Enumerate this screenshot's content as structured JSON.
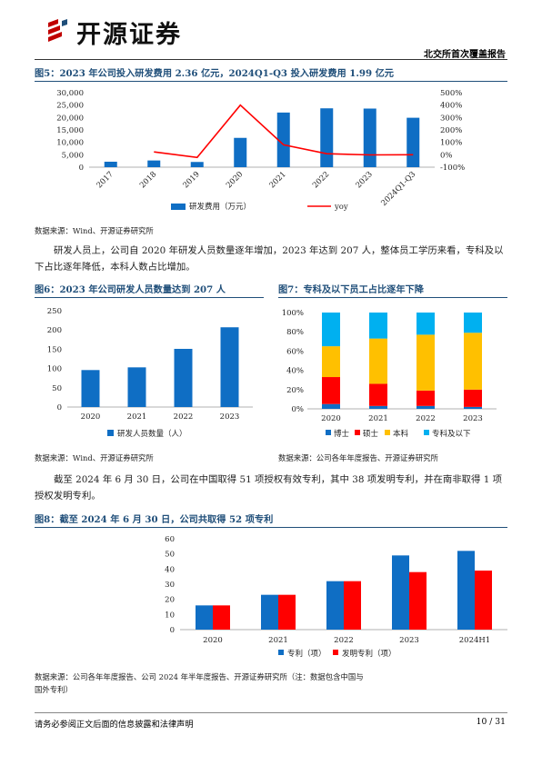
{
  "header": {
    "brand": "开源证券",
    "report_type": "北交所首次覆盖报告"
  },
  "fig5": {
    "title": "图5：2023 年公司投入研发费用 2.36 亿元，2024Q1-Q3 投入研发费用 1.99 亿元",
    "source": "数据来源：Wind、开源证券研究所"
  },
  "para1": "研发人员上，公司自 2020 年研发人员数量逐年增加，2023 年达到 207 人，整体员工学历来看，专科及以下占比逐年降低，本科人数占比增加。",
  "fig6": {
    "title": "图6：2023 年公司研发人员数量达到 207 人",
    "source": "数据来源：Wind、开源证券研究所"
  },
  "fig7": {
    "title": "图7：专科及以下员工占比逐年下降",
    "source": "数据来源：公司各年年度报告、开源证券研究所"
  },
  "para2": "截至 2024 年 6 月 30 日，公司在中国取得 51 项授权有效专利，其中 38 项发明专利，并在南非取得 1 项授权发明专利。",
  "fig8": {
    "title": "图8：截至 2024 年 6 月 30 日，公司共取得 52 项专利",
    "source_line1": "数据来源：公司各年年度报告、公司 2024 年半年度报告、开源证券研究所（注：数据包含中国与",
    "source_line2": "国外专利）"
  },
  "footer": {
    "disclaimer": "请务必参阅正文后面的信息披露和法律声明",
    "page": "10 / 31"
  },
  "colors": {
    "blue": "#0f6ec4",
    "red": "#ff0000",
    "yellow": "#ffc000",
    "sky": "#00b0f0",
    "title": "#1f4e79"
  },
  "chart_data": [
    {
      "type": "bar+line",
      "categories": [
        "2017",
        "2018",
        "2019",
        "2020",
        "2021",
        "2022",
        "2023",
        "2024Q1-Q3"
      ],
      "series": [
        {
          "name": "研发费用（万元）",
          "type": "bar",
          "axis": "left",
          "values": [
            2200,
            2700,
            2100,
            11800,
            22000,
            23700,
            23600,
            19900
          ]
        },
        {
          "name": "yoy",
          "type": "line",
          "axis": "right",
          "values": [
            null,
            23,
            -22,
            400,
            80,
            8,
            -1,
            0
          ]
        }
      ],
      "y_left": {
        "range": [
          0,
          30000
        ],
        "ticks": [
          "0",
          "5,000",
          "10,000",
          "15,000",
          "20,000",
          "25,000",
          "30,000"
        ]
      },
      "y_right": {
        "range": [
          -100,
          500
        ],
        "ticks": [
          "-100%",
          "0%",
          "100%",
          "200%",
          "300%",
          "400%",
          "500%"
        ]
      },
      "legend": "bottom"
    },
    {
      "type": "bar",
      "categories": [
        "2020",
        "2021",
        "2022",
        "2023"
      ],
      "series": [
        {
          "name": "研发人员数量（人）",
          "values": [
            96,
            103,
            151,
            207
          ]
        }
      ],
      "ylim": [
        0,
        250
      ],
      "yticks": [
        "0",
        "50",
        "100",
        "150",
        "200",
        "250"
      ],
      "legend": "bottom"
    },
    {
      "type": "stacked-bar",
      "categories": [
        "2020",
        "2021",
        "2022",
        "2023"
      ],
      "series": [
        {
          "name": "博士",
          "values": [
            5,
            3,
            3,
            2
          ]
        },
        {
          "name": "硕士",
          "values": [
            28,
            23,
            16,
            18
          ]
        },
        {
          "name": "本科",
          "values": [
            32,
            47,
            58,
            59
          ]
        },
        {
          "name": "专科及以下",
          "values": [
            35,
            27,
            23,
            21
          ]
        }
      ],
      "ylim": [
        0,
        100
      ],
      "yticks": [
        "0%",
        "20%",
        "40%",
        "60%",
        "80%",
        "100%"
      ],
      "legend": "bottom"
    },
    {
      "type": "grouped-bar",
      "categories": [
        "2020",
        "2021",
        "2022",
        "2023",
        "2024H1"
      ],
      "series": [
        {
          "name": "专利（项）",
          "values": [
            16,
            23,
            32,
            49,
            52
          ]
        },
        {
          "name": "发明专利（项）",
          "values": [
            16,
            23,
            32,
            38,
            39
          ]
        }
      ],
      "ylim": [
        0,
        60
      ],
      "yticks": [
        "0",
        "10",
        "20",
        "30",
        "40",
        "50",
        "60"
      ],
      "legend": "bottom"
    }
  ]
}
